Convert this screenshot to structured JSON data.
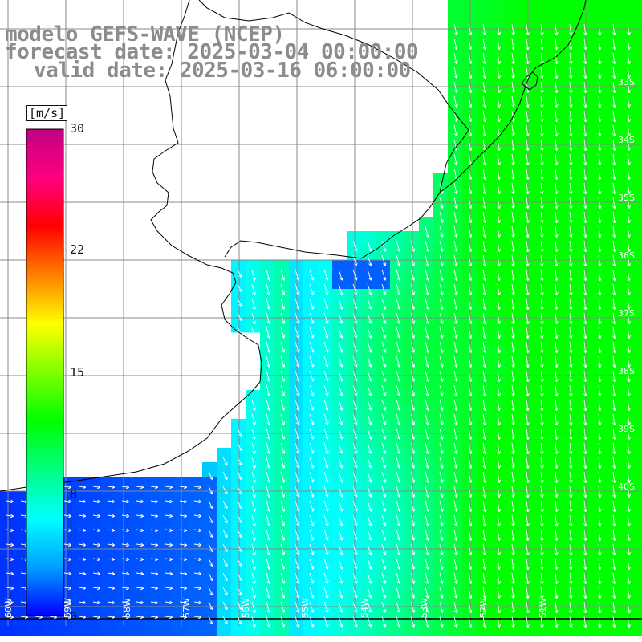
{
  "header": {
    "line1": "modelo GEFS-WAVE (NCEP)",
    "line2": "forecast date: 2025-03-04 00:00:00",
    "line3": "valid date: 2025-03-16 06:00:00"
  },
  "colorbar": {
    "unit": "[m/s]",
    "ticks": [
      "30",
      "22",
      "15",
      "8",
      "0"
    ],
    "colors": [
      "#0000ff",
      "#00a0ff",
      "#00ffff",
      "#00ff80",
      "#00ff00",
      "#80ff00",
      "#ffff00",
      "#ff8000",
      "#ff0000",
      "#ff0080",
      "#c00080"
    ]
  },
  "map": {
    "lat_labels": [
      "33S",
      "34S",
      "35S",
      "36S",
      "37S",
      "38S",
      "39S",
      "40S"
    ],
    "lon_labels": [
      "60W",
      "59W",
      "58W",
      "57W",
      "56W",
      "55W",
      "54W",
      "53W",
      "52W",
      "51W"
    ],
    "land_color": "#ffffff",
    "grid_color": "#888888",
    "arrow_color": "#ffffff"
  }
}
